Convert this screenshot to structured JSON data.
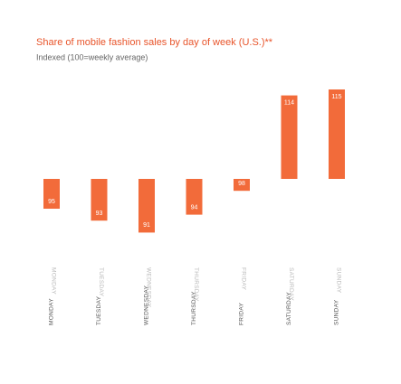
{
  "chart_data": {
    "type": "bar",
    "title": "Share of mobile fashion sales by day of week (U.S.)**",
    "subtitle": "Indexed (100=weekly average)",
    "categories": [
      "MONDAY",
      "TUESDAY",
      "WEDNESDAY",
      "THURSDAY",
      "FRIDAY",
      "SATURDAY",
      "SUNDAY"
    ],
    "values": [
      95,
      93,
      91,
      94,
      98,
      114,
      115
    ],
    "baseline": 100,
    "color": "#f26b3a"
  }
}
